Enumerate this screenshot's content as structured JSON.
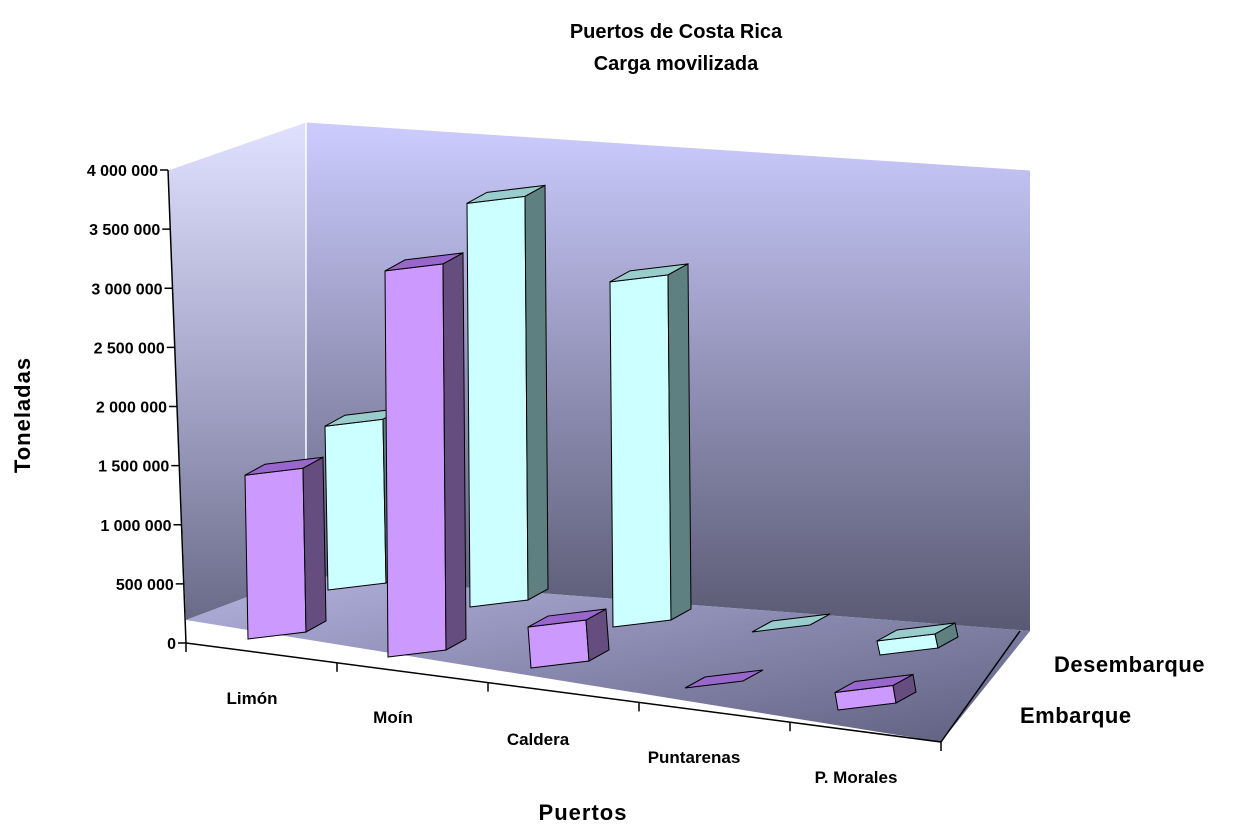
{
  "chart_data": {
    "type": "bar",
    "title": "Puertos de Costa Rica",
    "subtitle": "Carga movilizada",
    "xlabel": "Puertos",
    "ylabel": "Toneladas",
    "categories": [
      "Limón",
      "Moín",
      "Caldera",
      "Puntarenas",
      "P. Morales"
    ],
    "y_ticks": [
      "0",
      "500 000",
      "1 000 000",
      "1 500 000",
      "2 000 000",
      "2 500 000",
      "3 000 000",
      "3 500 000",
      "4 000 000"
    ],
    "ylim": [
      0,
      4000000
    ],
    "grid": false,
    "series": [
      {
        "name": "Embarque",
        "values": [
          1400000,
          3300000,
          350000,
          0,
          150000
        ]
      },
      {
        "name": "Desembarque",
        "values": [
          1400000,
          3450000,
          2950000,
          0,
          120000
        ]
      }
    ],
    "colors": {
      "Embarque": {
        "front": "#cc99ff",
        "side": "#664d80",
        "top": "#9966cc"
      },
      "Desembarque": {
        "front": "#ccffff",
        "side": "#5f8080",
        "top": "#99cccc"
      }
    }
  }
}
